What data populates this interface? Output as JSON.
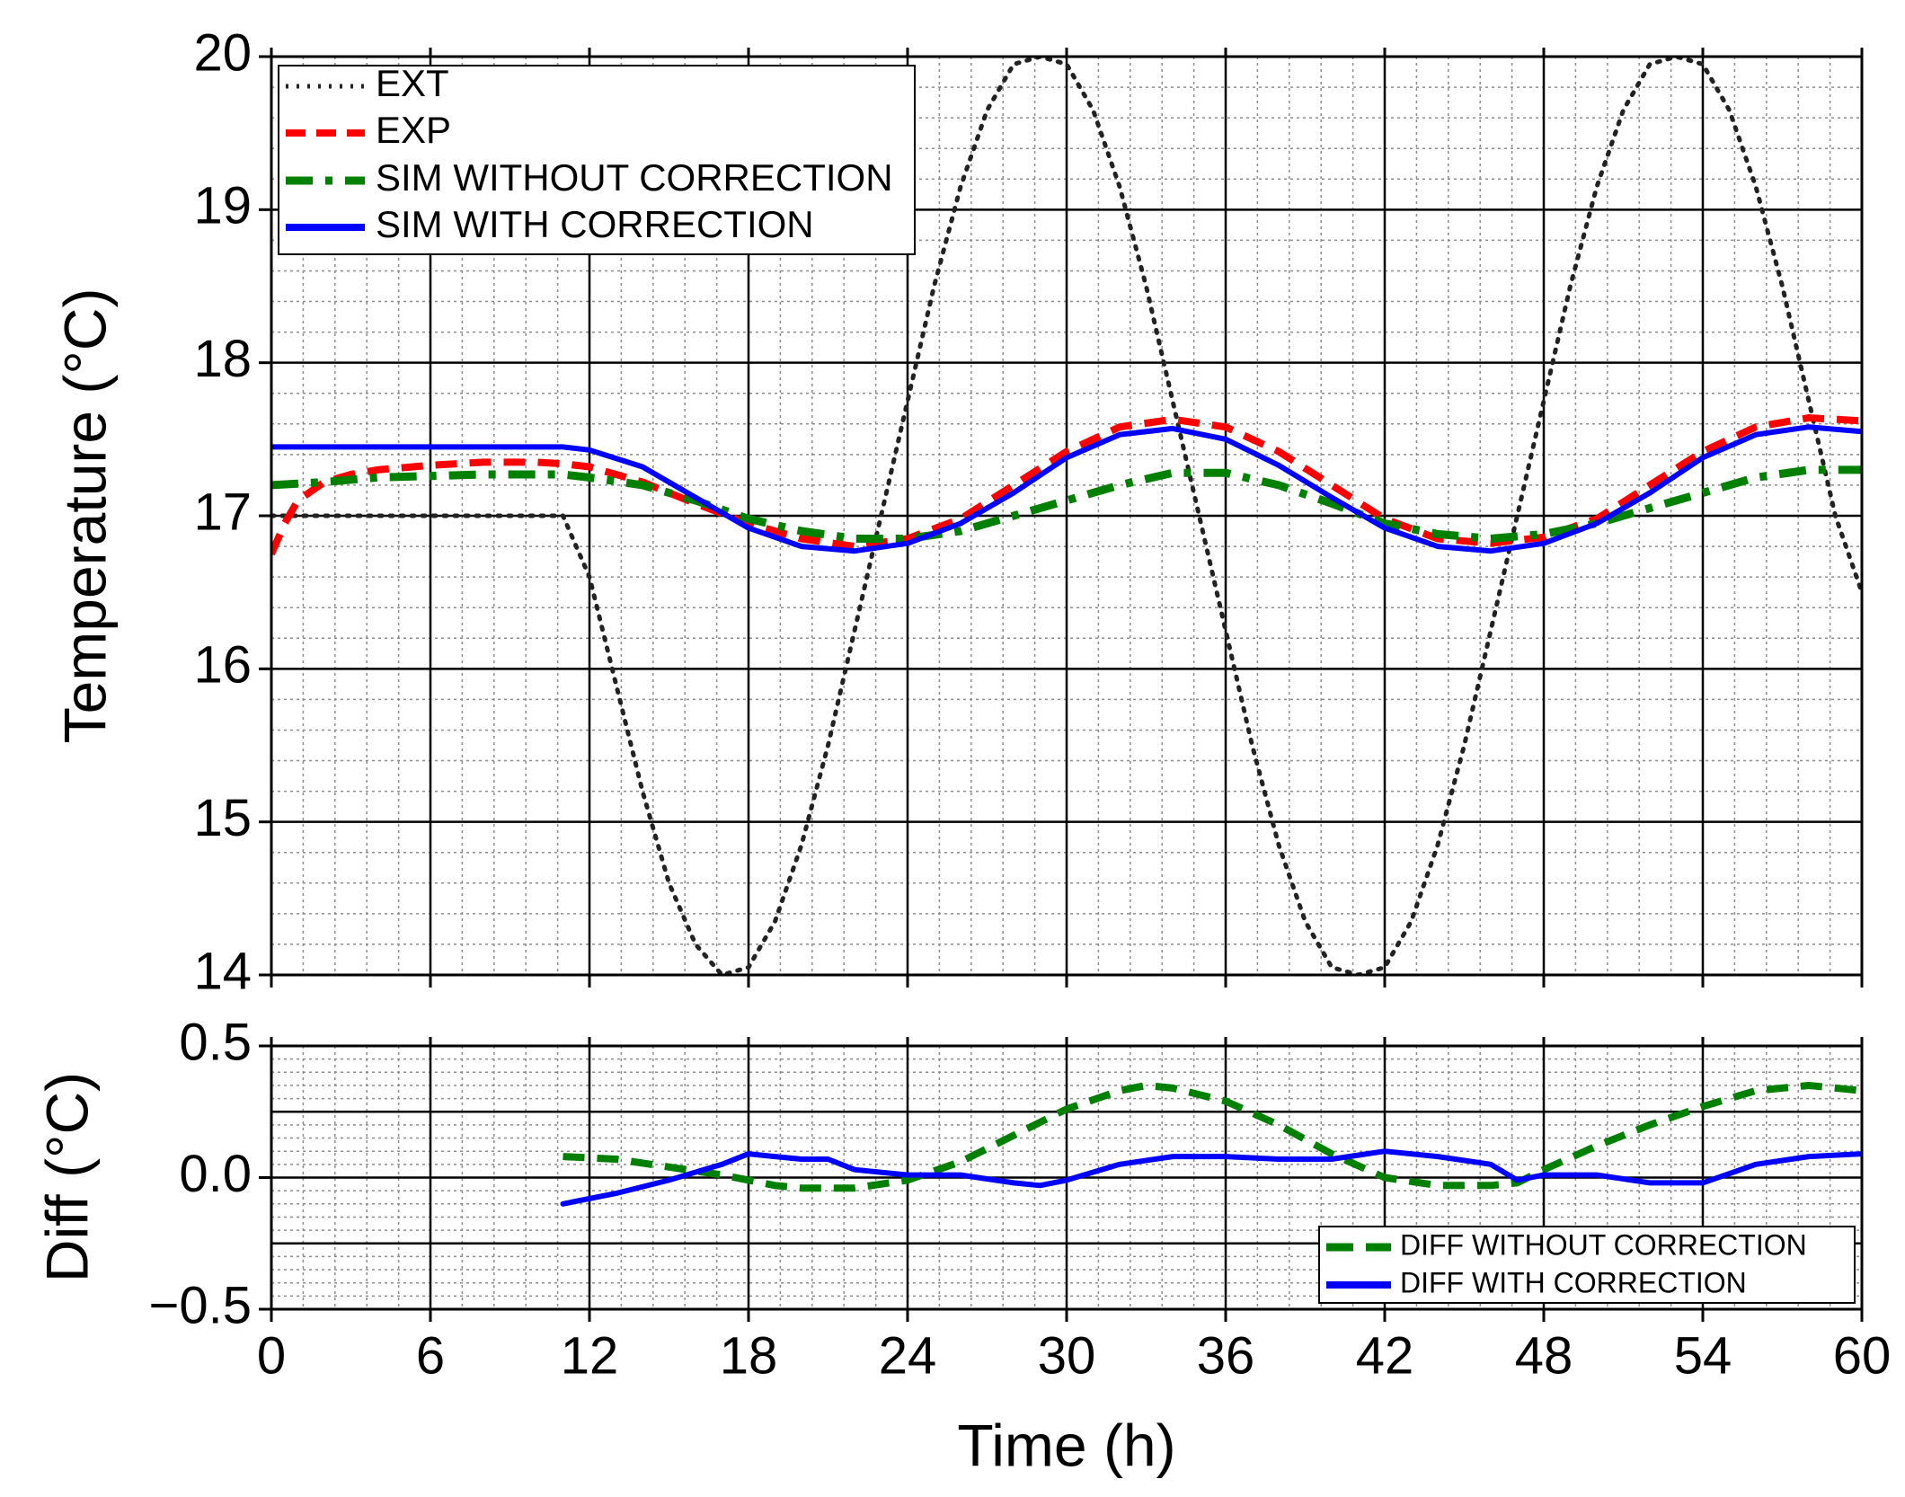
{
  "chart_data": [
    {
      "type": "line",
      "panel": "top",
      "title": "",
      "xlabel": "",
      "ylabel": "Temperature (°C)",
      "xlim": [
        0,
        60
      ],
      "ylim": [
        14,
        20
      ],
      "xticks": [
        "0",
        "6",
        "12",
        "18",
        "24",
        "30",
        "36",
        "42",
        "48",
        "54",
        "60"
      ],
      "yticks": [
        "14",
        "15",
        "16",
        "17",
        "18",
        "19",
        "20"
      ],
      "grid": "major and minor",
      "legend_position": "top-left",
      "series": [
        {
          "name": "EXT",
          "style": "dotted",
          "color": "#222222",
          "x": [
            0,
            11,
            12,
            13,
            14,
            15,
            16,
            17,
            18,
            19,
            20,
            21,
            22,
            23,
            24,
            25,
            26,
            27,
            28,
            29,
            30,
            31,
            32,
            33,
            34,
            35,
            36,
            37,
            38,
            39,
            40,
            41,
            42,
            43,
            44,
            45,
            46,
            47,
            48,
            49,
            50,
            51,
            52,
            53,
            54,
            55,
            56,
            57,
            58,
            59,
            60
          ],
          "y": [
            17,
            17,
            16.6,
            15.9,
            15.2,
            14.6,
            14.2,
            14.0,
            14.05,
            14.35,
            14.85,
            15.5,
            16.25,
            17.0,
            17.75,
            18.5,
            19.15,
            19.65,
            19.95,
            20.0,
            19.95,
            19.65,
            19.15,
            18.5,
            17.75,
            17.0,
            16.25,
            15.5,
            14.85,
            14.35,
            14.05,
            14.0,
            14.05,
            14.35,
            14.85,
            15.5,
            16.25,
            17.0,
            17.75,
            18.5,
            19.15,
            19.65,
            19.95,
            20.0,
            19.95,
            19.65,
            19.15,
            18.5,
            17.75,
            17.0,
            16.5
          ]
        },
        {
          "name": "EXP",
          "style": "dashed",
          "color": "#ff0000",
          "x": [
            0,
            0.5,
            1,
            2,
            3,
            4,
            6,
            8,
            10,
            11,
            12,
            14,
            16,
            18,
            20,
            22,
            24,
            26,
            28,
            30,
            32,
            34,
            36,
            38,
            40,
            42,
            44,
            46,
            48,
            50,
            52,
            54,
            56,
            58,
            60
          ],
          "y": [
            16.75,
            16.95,
            17.1,
            17.22,
            17.27,
            17.3,
            17.33,
            17.35,
            17.35,
            17.34,
            17.32,
            17.22,
            17.08,
            16.95,
            16.85,
            16.8,
            16.85,
            16.98,
            17.2,
            17.42,
            17.58,
            17.63,
            17.58,
            17.42,
            17.2,
            16.98,
            16.85,
            16.82,
            16.86,
            16.98,
            17.2,
            17.42,
            17.58,
            17.64,
            17.62
          ]
        },
        {
          "name": "SIM WITHOUT CORRECTION",
          "style": "dash-dot",
          "color": "#008000",
          "x": [
            0,
            1,
            2,
            4,
            6,
            8,
            10,
            11,
            12,
            14,
            16,
            18,
            20,
            22,
            24,
            26,
            28,
            30,
            32,
            34,
            36,
            38,
            40,
            42,
            44,
            46,
            48,
            50,
            52,
            54,
            56,
            58,
            60
          ],
          "y": [
            17.2,
            17.21,
            17.22,
            17.25,
            17.26,
            17.27,
            17.27,
            17.27,
            17.25,
            17.2,
            17.1,
            16.98,
            16.9,
            16.85,
            16.85,
            16.9,
            17.0,
            17.1,
            17.2,
            17.28,
            17.28,
            17.2,
            17.08,
            16.95,
            16.88,
            16.85,
            16.88,
            16.95,
            17.05,
            17.15,
            17.25,
            17.3,
            17.3
          ]
        },
        {
          "name": "SIM WITH CORRECTION",
          "style": "solid",
          "color": "#0000ff",
          "x": [
            0,
            4,
            8,
            11,
            12,
            14,
            16,
            18,
            20,
            22,
            24,
            26,
            28,
            30,
            32,
            34,
            36,
            38,
            40,
            42,
            44,
            46,
            48,
            50,
            52,
            54,
            56,
            58,
            60
          ],
          "y": [
            17.45,
            17.45,
            17.45,
            17.45,
            17.43,
            17.32,
            17.12,
            16.92,
            16.8,
            16.77,
            16.82,
            16.95,
            17.15,
            17.38,
            17.53,
            17.57,
            17.5,
            17.33,
            17.12,
            16.92,
            16.8,
            16.77,
            16.82,
            16.95,
            17.15,
            17.38,
            17.53,
            17.58,
            17.55
          ]
        }
      ]
    },
    {
      "type": "line",
      "panel": "bottom",
      "title": "",
      "xlabel": "Time (h)",
      "ylabel": "Diff (°C)",
      "xlim": [
        0,
        60
      ],
      "ylim": [
        -0.5,
        0.5
      ],
      "xticks": [
        "0",
        "6",
        "12",
        "18",
        "24",
        "30",
        "36",
        "42",
        "48",
        "54",
        "60"
      ],
      "yticks": [
        "−0.5",
        "0.0",
        "0.5"
      ],
      "grid": "major and minor",
      "legend_position": "bottom-right",
      "series": [
        {
          "name": "DIFF WITHOUT CORRECTION",
          "style": "dashed",
          "color": "#008000",
          "x": [
            11,
            13,
            15,
            17,
            18,
            19,
            20,
            22,
            24,
            26,
            28,
            30,
            32,
            33,
            34,
            36,
            38,
            40,
            42,
            44,
            46,
            47,
            48,
            50,
            52,
            54,
            56,
            58,
            60
          ],
          "y": [
            0.08,
            0.07,
            0.04,
            0.01,
            -0.01,
            -0.03,
            -0.04,
            -0.04,
            -0.01,
            0.06,
            0.16,
            0.26,
            0.33,
            0.35,
            0.34,
            0.29,
            0.2,
            0.09,
            0.0,
            -0.03,
            -0.03,
            -0.02,
            0.03,
            0.12,
            0.2,
            0.27,
            0.33,
            0.35,
            0.33
          ]
        },
        {
          "name": "DIFF WITH CORRECTION",
          "style": "solid",
          "color": "#0000ff",
          "x": [
            11,
            13,
            15,
            17,
            18,
            19,
            20,
            21,
            22,
            24,
            26,
            28,
            29,
            30,
            32,
            34,
            36,
            38,
            40,
            42,
            44,
            46,
            47,
            48,
            50,
            52,
            54,
            56,
            58,
            60
          ],
          "y": [
            -0.1,
            -0.06,
            -0.01,
            0.05,
            0.09,
            0.08,
            0.07,
            0.07,
            0.03,
            0.01,
            0.01,
            -0.02,
            -0.03,
            -0.01,
            0.05,
            0.08,
            0.08,
            0.07,
            0.07,
            0.1,
            0.08,
            0.05,
            -0.01,
            0.01,
            0.01,
            -0.02,
            -0.02,
            0.05,
            0.08,
            0.09
          ]
        }
      ]
    }
  ]
}
